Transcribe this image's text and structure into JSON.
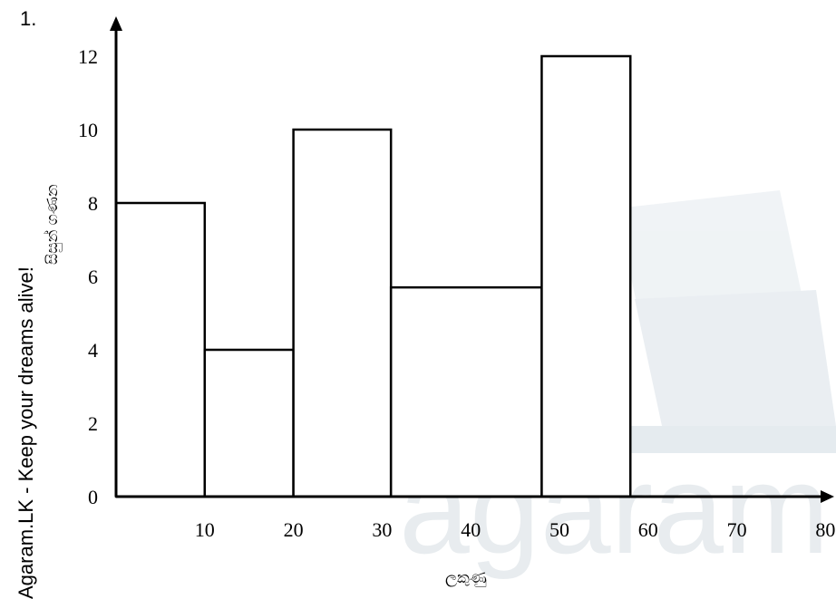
{
  "question_number": "1.",
  "side_watermark": "Agaram.LK - Keep your dreams alive!",
  "watermark_text": "agaram",
  "chart_data": {
    "type": "bar",
    "title": "",
    "xlabel": "ලකුණු",
    "ylabel": "සිසුන් ගණන",
    "bars": [
      {
        "x0": 0,
        "x1": 10,
        "value": 8
      },
      {
        "x0": 10,
        "x1": 20,
        "value": 4
      },
      {
        "x0": 20,
        "x1": 31,
        "value": 10
      },
      {
        "x0": 31,
        "x1": 48,
        "value": 5.7
      },
      {
        "x0": 48,
        "x1": 58,
        "value": 12
      }
    ],
    "xticks": [
      "10",
      "20",
      "30",
      "40",
      "50",
      "60",
      "70",
      "80"
    ],
    "yticks": [
      "0",
      "2",
      "4",
      "6",
      "8",
      "10",
      "12"
    ],
    "xlim": [
      0,
      80
    ],
    "ylim": [
      0,
      12
    ],
    "grid": false
  }
}
